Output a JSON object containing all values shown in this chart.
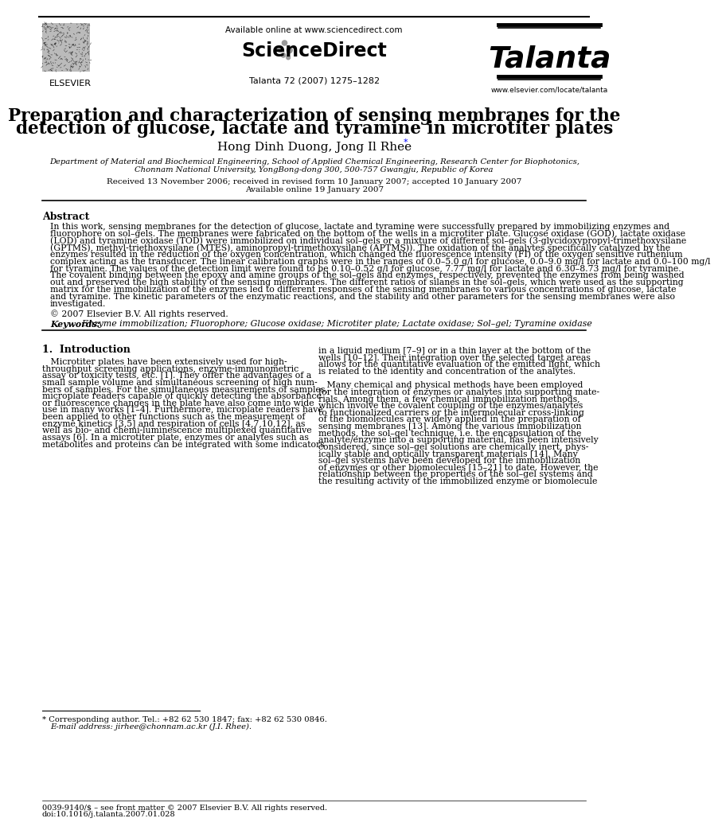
{
  "bg_color": "#ffffff",
  "header": {
    "available_online": "Available online at www.sciencedirect.com",
    "sciencedirect": "ScienceDirect",
    "talanta_journal": "Talanta",
    "journal_info": "Talanta 72 (2007) 1275–1282",
    "elsevier_label": "ELSEVIER",
    "website": "www.elsevier.com/locate/talanta"
  },
  "title_line1": "Preparation and characterization of sensing membranes for the",
  "title_line2": "detection of glucose, lactate and tyramine in microtiter plates",
  "authors": "Hong Dinh Duong, Jong Il Rhee",
  "affiliation_line1": "Department of Material and Biochemical Engineering, School of Applied Chemical Engineering, Research Center for Biophotonics,",
  "affiliation_line2": "Chonnam National University, YongBong-dong 300, 500-757 Gwangju, Republic of Korea",
  "received": "Received 13 November 2006; received in revised form 10 January 2007; accepted 10 January 2007",
  "available_online_date": "Available online 19 January 2007",
  "abstract_heading": "Abstract",
  "abstract_lines": [
    "In this work, sensing membranes for the detection of glucose, lactate and tyramine were successfully prepared by immobilizing enzymes and",
    "fluorophore on sol–gels. The membranes were fabricated on the bottom of the wells in a microtiter plate. Glucose oxidase (GOD), lactate oxidase",
    "(LOD) and tyramine oxidase (TOD) were immobilized on individual sol–gels or a mixture of different sol–gels (3-glycidoxypropyl-trimethoxysilane",
    "(GPTMS), methyl-triethoxysilane (MTES), aminopropyl-trimethoxysilane (APTMS)). The oxidation of the analytes specifically catalyzed by the",
    "enzymes resulted in the reduction of the oxygen concentration, which changed the fluorescence intensity (FI) of the oxygen sensitive ruthenium",
    "complex acting as the transducer. The linear calibration graphs were in the ranges of 0.0–5.0 g/l for glucose, 0.0–9.0 mg/l for lactate and 0.0–100 mg/l",
    "for tyramine. The values of the detection limit were found to be 0.10–0.52 g/l for glucose, 7.77 mg/l for lactate and 6.30–8.73 mg/l for tyramine.",
    "The covalent binding between the epoxy and amine groups of the sol–gels and enzymes, respectively, prevented the enzymes from being washed",
    "out and preserved the high stability of the sensing membranes. The different ratios of silanes in the sol–gels, which were used as the supporting",
    "matrix for the immobilization of the enzymes led to different responses of the sensing membranes to various concentrations of glucose, lactate",
    "and tyramine. The kinetic parameters of the enzymatic reactions, and the stability and other parameters for the sensing membranes were also",
    "investigated."
  ],
  "copyright": "© 2007 Elsevier B.V. All rights reserved.",
  "keywords_label": "Keywords:",
  "keywords": "  Enzyme immobilization; Fluorophore; Glucose oxidase; Microtiter plate; Lactate oxidase; Sol–gel; Tyramine oxidase",
  "section1_heading": "1.  Introduction",
  "intro_col1_lines": [
    "   Microtiter plates have been extensively used for high-",
    "throughput screening applications, enzyme-immunometric",
    "assay or toxicity tests, etc. [1]. They offer the advantages of a",
    "small sample volume and simultaneous screening of high num-",
    "bers of samples. For the simultaneous measurements of samples,",
    "microplate readers capable of quickly detecting the absorbance",
    "or fluorescence changes in the plate have also come into wide",
    "use in many works [1–4]. Furthermore, microplate readers have",
    "been applied to other functions such as the measurement of",
    "enzyme kinetics [3,5] and respiration of cells [4,7,10,12], as",
    "well as bio- and chemi-luminescence multiplexed quantitative",
    "assays [6]. In a microtiter plate, enzymes or analytes such as",
    "metabolites and proteins can be integrated with some indicators"
  ],
  "intro_col2_lines": [
    "in a liquid medium [7–9] or in a thin layer at the bottom of the",
    "wells [10–12]. Their integration over the selected target areas",
    "allows for the quantitative evaluation of the emitted light, which",
    "is related to the identity and concentration of the analytes.",
    "",
    "   Many chemical and physical methods have been employed",
    "for the integration of enzymes or analytes into supporting mate-",
    "rials. Among them, a few chemical immobilization methods,",
    "which involve the covalent coupling of the enzymes/analytes",
    "to functionalized carriers or the intermolecular cross-linking",
    "of the biomolecules are widely applied in the preparation of",
    "sensing membranes [13]. Among the various immobilization",
    "methods, the sol–gel technique, i.e. the encapsulation of the",
    "analyte/enzyme into a supporting material, has been intensively",
    "considered, since sol–gel solutions are chemically inert, phys-",
    "ically stable and optically transparent materials [14]. Many",
    "sol–gel systems have been developed for the immobilization",
    "of enzymes or other biomolecules [15–21] to date. However, the",
    "relationship between the properties of the sol–gel systems and",
    "the resulting activity of the immobilized enzyme or biomolecule"
  ],
  "footnote_star": "* Corresponding author. Tel.: +82 62 530 1847; fax: +82 62 530 0846.",
  "footnote_email": "E-mail address: jirhee@chonnam.ac.kr (J.I. Rhee).",
  "footer_issn": "0039-9140/$ – see front matter © 2007 Elsevier B.V. All rights reserved.",
  "footer_doi": "doi:10.1016/j.talanta.2007.01.028"
}
